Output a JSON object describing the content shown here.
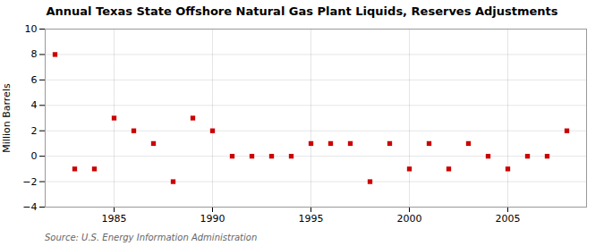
{
  "chart_data": {
    "type": "scatter",
    "title": "Annual Texas State Offshore Natural Gas Plant Liquids, Reserves Adjustments",
    "ylabel": "Million Barrels",
    "annotations": [
      "Source: U.S. Energy Information Administration"
    ],
    "x": [
      1982,
      1983,
      1984,
      1985,
      1986,
      1987,
      1988,
      1989,
      1990,
      1991,
      1992,
      1993,
      1994,
      1995,
      1996,
      1997,
      1998,
      1999,
      2000,
      2001,
      2002,
      2003,
      2004,
      2005,
      2006,
      2007,
      2008
    ],
    "values": [
      8.0,
      -1.0,
      -1.0,
      3.0,
      2.0,
      1.0,
      -2.0,
      3.0,
      2.0,
      0.0,
      0.0,
      0.0,
      0.0,
      1.0,
      1.0,
      1.0,
      -2.0,
      1.0,
      -1.0,
      1.0,
      -1.0,
      1.0,
      0.0,
      -1.0,
      0.0,
      0.0,
      2.0
    ],
    "color": "#cc0000",
    "marker": "square",
    "xlim": [
      1981.5,
      2009
    ],
    "ylim": [
      -4,
      10
    ],
    "xticks": [
      1985,
      1990,
      1995,
      2000,
      2005
    ],
    "yticks": [
      -4,
      -2,
      0,
      2,
      4,
      6,
      8,
      10
    ],
    "grid": true
  }
}
